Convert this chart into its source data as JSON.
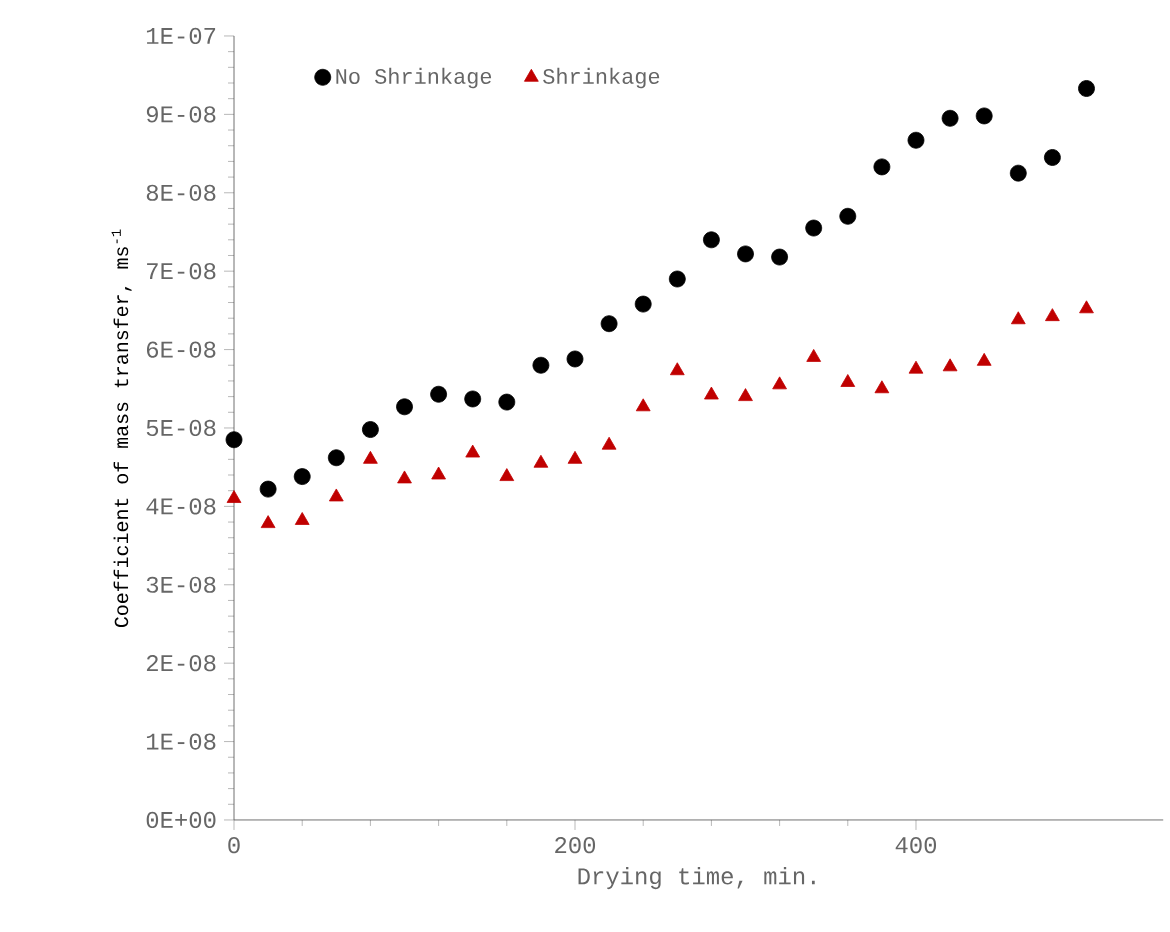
{
  "chart_data": {
    "type": "scatter",
    "xlabel": "Drying time, min.",
    "ylabel": "Coefficient of mass transfer, ms$^{-1}$",
    "x": [
      0,
      20,
      40,
      60,
      80,
      100,
      120,
      140,
      160,
      180,
      200,
      220,
      240,
      260,
      280,
      300,
      320,
      340,
      360,
      380,
      400,
      420,
      440,
      460,
      480,
      500
    ],
    "series": [
      {
        "name": "No Shrinkage",
        "color": "#000000",
        "marker": "circle",
        "values": [
          4.85e-08,
          4.22e-08,
          4.38e-08,
          4.62e-08,
          4.98e-08,
          5.27e-08,
          5.43e-08,
          5.37e-08,
          5.33e-08,
          5.8e-08,
          5.88e-08,
          6.33e-08,
          6.58e-08,
          6.9e-08,
          7.4e-08,
          7.22e-08,
          7.18e-08,
          7.55e-08,
          7.7e-08,
          8.33e-08,
          8.67e-08,
          8.95e-08,
          8.98e-08,
          8.25e-08,
          8.45e-08,
          9.33e-08
        ]
      },
      {
        "name": "Shrinkage",
        "color": "#c00000",
        "marker": "triangle",
        "values": [
          4.1e-08,
          3.78e-08,
          3.82e-08,
          4.12e-08,
          4.6e-08,
          4.35e-08,
          4.4e-08,
          4.68e-08,
          4.38e-08,
          4.55e-08,
          4.6e-08,
          4.78e-08,
          5.27e-08,
          5.73e-08,
          5.42e-08,
          5.4e-08,
          5.55e-08,
          5.9e-08,
          5.58e-08,
          5.5e-08,
          5.75e-08,
          5.78e-08,
          5.85e-08,
          6.38e-08,
          6.42e-08,
          6.52e-08
        ]
      }
    ],
    "xlim": [
      0,
      545
    ],
    "xticks": [
      0,
      200,
      400
    ],
    "ylim": [
      0,
      1e-07
    ],
    "yticks": [
      {
        "value": 0,
        "label": "0E+00"
      },
      {
        "value": 1e-08,
        "label": "1E-08"
      },
      {
        "value": 2e-08,
        "label": "2E-08"
      },
      {
        "value": 3e-08,
        "label": "3E-08"
      },
      {
        "value": 4e-08,
        "label": "4E-08"
      },
      {
        "value": 5e-08,
        "label": "5E-08"
      },
      {
        "value": 6e-08,
        "label": "6E-08"
      },
      {
        "value": 7e-08,
        "label": "7E-08"
      },
      {
        "value": 8e-08,
        "label": "8E-08"
      },
      {
        "value": 9e-08,
        "label": "9E-08"
      },
      {
        "value": 1e-07,
        "label": "1E-07"
      }
    ],
    "grid": false,
    "legend": "top left"
  }
}
